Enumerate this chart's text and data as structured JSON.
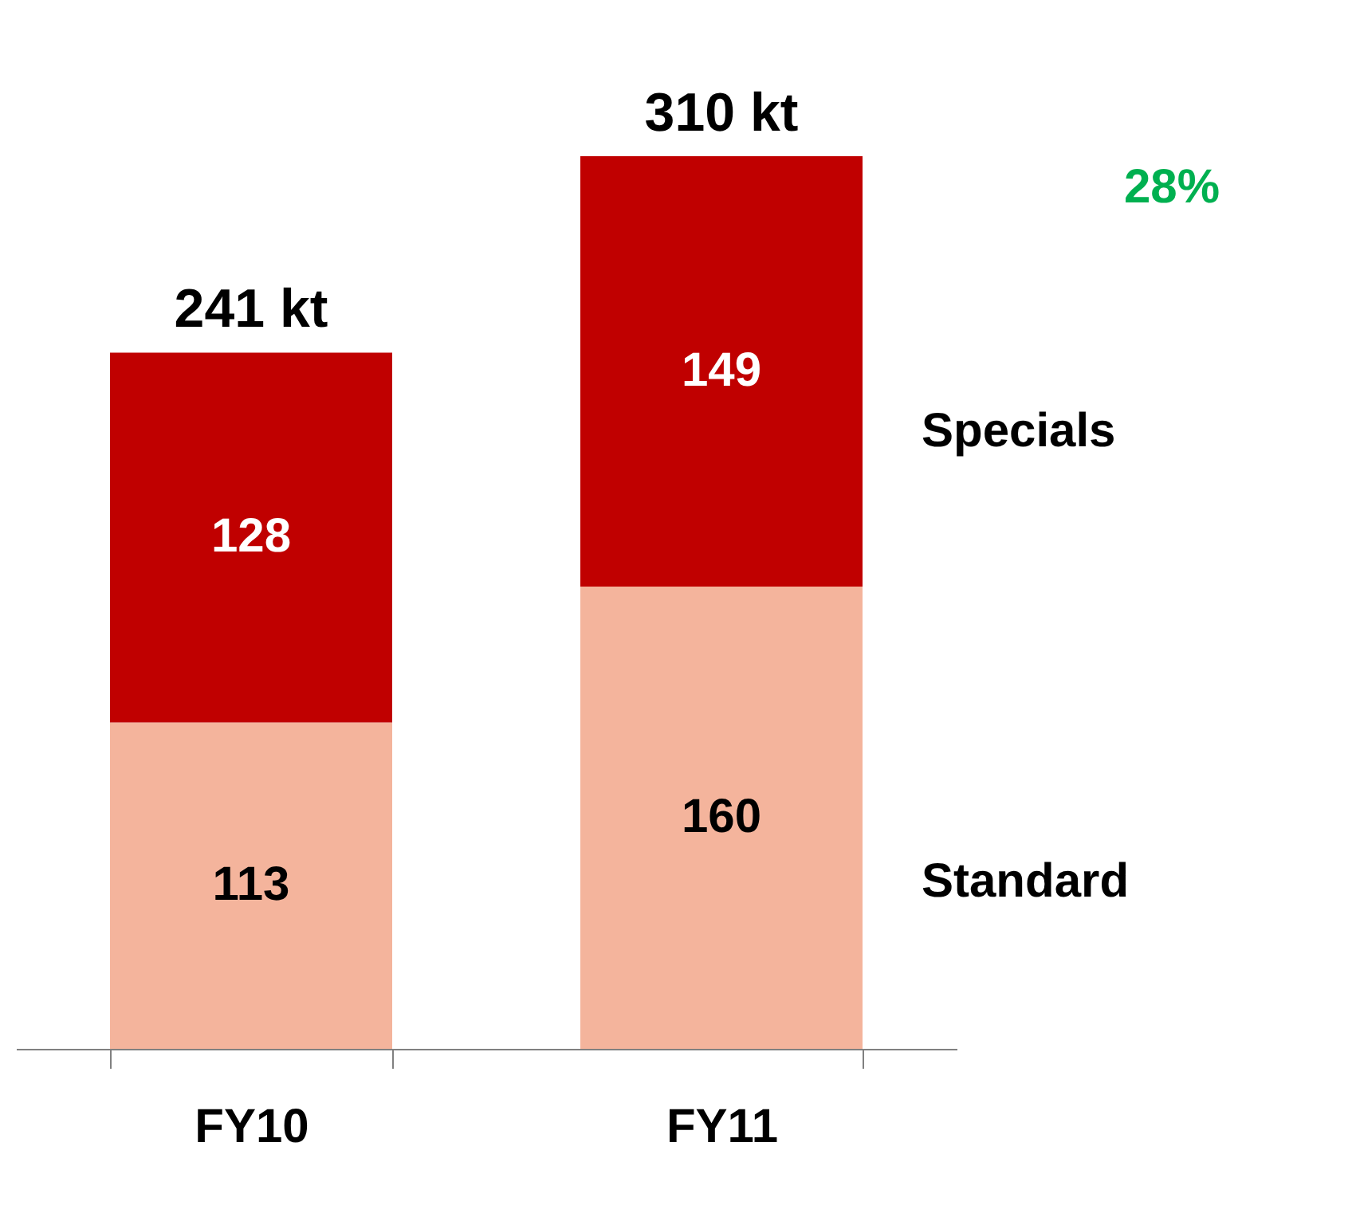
{
  "chart_data": {
    "type": "bar",
    "stacked": true,
    "categories": [
      "FY10",
      "FY11"
    ],
    "series": [
      {
        "name": "Standard",
        "color": "#f4b49c",
        "values": [
          113,
          160
        ]
      },
      {
        "name": "Specials",
        "color": "#c00000",
        "values": [
          128,
          149
        ]
      }
    ],
    "data_labels": true,
    "totals": [
      "241 kt",
      "310 kt"
    ],
    "annotations": [
      "28%"
    ],
    "grid": false
  }
}
